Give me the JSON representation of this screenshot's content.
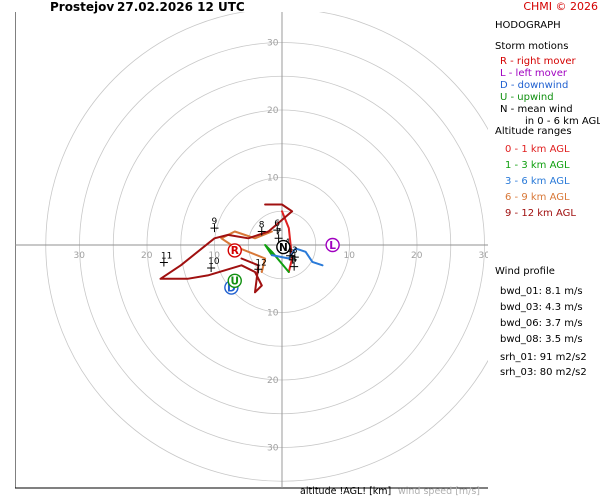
{
  "header": {
    "station": "Prostejov",
    "datetime": "27.02.2026 12 UTC",
    "copyright": "CHMI © 2026"
  },
  "panel": {
    "title": "HODOGRAPH",
    "storm_motions_heading": "Storm motions",
    "storm_motions": [
      {
        "text": "R - right mover",
        "color": "#d40000"
      },
      {
        "text": "L - left mover",
        "color": "#a000c0"
      },
      {
        "text": "D - downwind",
        "color": "#2060d0"
      },
      {
        "text": "U - upwind",
        "color": "#109010"
      },
      {
        "text": "N - mean wind",
        "color": "#000000"
      },
      {
        "text": "in 0 - 6 km AGL",
        "color": "#000000"
      }
    ],
    "altitude_heading": "Altitude ranges",
    "altitude_ranges": [
      {
        "text": "0 - 1 km AGL",
        "color": "#e02020"
      },
      {
        "text": "1 - 3 km AGL",
        "color": "#10a010"
      },
      {
        "text": "3 - 6 km AGL",
        "color": "#2a7ad8"
      },
      {
        "text": "6 - 9 km AGL",
        "color": "#d87838"
      },
      {
        "text": "9 - 12 km AGL",
        "color": "#a01010"
      }
    ],
    "wind_profile_heading": "Wind profile",
    "wind_profile": [
      "bwd_01: 8.1 m/s",
      "bwd_03: 4.3 m/s",
      "bwd_06: 3.7 m/s",
      "bwd_08: 3.5 m/s",
      "srh_01: 91 m2/s2",
      "srh_03: 80 m2/s2"
    ]
  },
  "footer": {
    "altitude_label": "altitude !AGL! [km]",
    "speed_label": "wind speed [m/s]"
  },
  "chart_data": {
    "type": "line",
    "ring_values": [
      5,
      10,
      15,
      20,
      25,
      30,
      35
    ],
    "ring_labels": [
      "10",
      "20",
      "30"
    ],
    "grid": true,
    "segments": [
      {
        "range": "0 - 1 km AGL",
        "color": "#e02020",
        "points": [
          [
            0,
            5
          ],
          [
            1,
            2.5
          ],
          [
            1.5,
            -2
          ],
          [
            1,
            -4
          ]
        ]
      },
      {
        "range": "1 - 3 km AGL",
        "color": "#10a010",
        "points": [
          [
            1,
            -4
          ],
          [
            -1.5,
            -1
          ],
          [
            -2.5,
            0
          ],
          [
            -1.5,
            -1.5
          ]
        ]
      },
      {
        "range": "3 - 6 km AGL",
        "color": "#2a7ad8",
        "points": [
          [
            -1.5,
            -1.5
          ],
          [
            1,
            -2
          ],
          [
            2,
            -0.5
          ],
          [
            3.5,
            -1
          ],
          [
            4.5,
            -2.5
          ],
          [
            6,
            -3
          ]
        ]
      },
      {
        "range": "6 - 9 km AGL",
        "color": "#d87838",
        "points": [
          [
            -1.5,
            2
          ],
          [
            -4,
            1
          ],
          [
            -7,
            2
          ],
          [
            -9,
            1
          ],
          [
            -7.5,
            0
          ],
          [
            -2.5,
            -2
          ],
          [
            -3,
            -4
          ]
        ]
      },
      {
        "range": "9 - 12 km AGL",
        "color": "#a01010",
        "points": [
          [
            -2.5,
            6
          ],
          [
            0,
            6
          ],
          [
            1.5,
            5
          ],
          [
            -2,
            2
          ],
          [
            -5,
            1
          ],
          [
            -8,
            1.5
          ],
          [
            -10,
            1
          ],
          [
            -15,
            -3
          ],
          [
            -18,
            -5
          ],
          [
            -14,
            -5
          ],
          [
            -11,
            -4.5
          ],
          [
            -6,
            -3
          ],
          [
            -4,
            -4
          ],
          [
            -3,
            -6
          ],
          [
            -4,
            -7
          ],
          [
            -3.5,
            -3
          ],
          [
            -6,
            -2
          ]
        ]
      }
    ],
    "height_labels": [
      {
        "label": "1",
        "x": 1.2,
        "y": -1.6
      },
      {
        "label": "2",
        "x": 1.6,
        "y": -2.2
      },
      {
        "label": "3",
        "x": 1.9,
        "y": -1.8
      },
      {
        "label": "4",
        "x": 0.8,
        "y": -0.6
      },
      {
        "label": "5",
        "x": 1.8,
        "y": -3.2
      },
      {
        "label": "6",
        "x": -0.7,
        "y": 2.2
      },
      {
        "label": "7",
        "x": -0.5,
        "y": 1.0
      },
      {
        "label": "8",
        "x": -3.0,
        "y": 2.0
      },
      {
        "label": "9",
        "x": -10.0,
        "y": 2.5
      },
      {
        "label": "10",
        "x": -10.5,
        "y": -3.4
      },
      {
        "label": "11",
        "x": -17.5,
        "y": -2.6
      },
      {
        "label": "12",
        "x": -3.5,
        "y": -3.6
      }
    ],
    "storm_markers": [
      {
        "label": "R",
        "x": -7.0,
        "y": -0.8,
        "color": "#d40000"
      },
      {
        "label": "L",
        "x": 7.5,
        "y": 0.0,
        "color": "#a000c0"
      },
      {
        "label": "D",
        "x": -7.5,
        "y": -6.3,
        "color": "#2060d0"
      },
      {
        "label": "U",
        "x": -7.0,
        "y": -5.3,
        "color": "#109010"
      },
      {
        "label": "N",
        "x": 0.2,
        "y": -0.3,
        "color": "#000000"
      }
    ]
  }
}
